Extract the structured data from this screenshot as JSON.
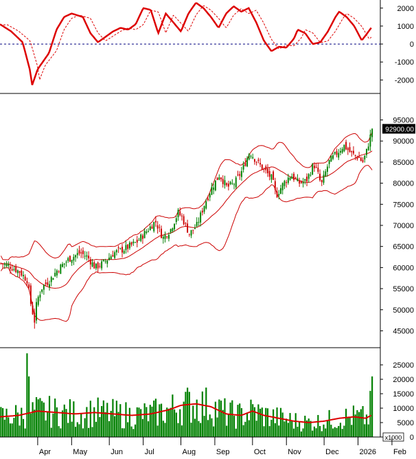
{
  "chart_data": {
    "type": "candlestick",
    "months": [
      {
        "label": "Apr",
        "t": 0.1
      },
      {
        "label": "May",
        "t": 0.19
      },
      {
        "label": "Jun",
        "t": 0.29
      },
      {
        "label": "Jul",
        "t": 0.38
      },
      {
        "label": "Aug",
        "t": 0.48
      },
      {
        "label": "Sep",
        "t": 0.57
      },
      {
        "label": "Oct",
        "t": 0.67
      },
      {
        "label": "Nov",
        "t": 0.76
      },
      {
        "label": "Dec",
        "t": 0.86
      },
      {
        "label": "2026",
        "t": 0.95
      },
      {
        "label": "Feb",
        "t": 1.04
      }
    ],
    "price_panel": {
      "ylim": [
        41000,
        99000
      ],
      "yticks": [
        45000,
        50000,
        55000,
        60000,
        65000,
        70000,
        75000,
        80000,
        85000,
        90000,
        95000
      ],
      "last_price_label": "92900.00",
      "last_price": 92900,
      "up_color": "#008000",
      "down_color": "#cc0000",
      "band_color": "#cc0000",
      "anchors": [
        [
          0.0,
          61000
        ],
        [
          0.02,
          60500
        ],
        [
          0.05,
          59000
        ],
        [
          0.07,
          57000
        ],
        [
          0.08,
          51000
        ],
        [
          0.09,
          47000
        ],
        [
          0.095,
          52000
        ],
        [
          0.11,
          55500
        ],
        [
          0.13,
          57000
        ],
        [
          0.15,
          59500
        ],
        [
          0.18,
          62000
        ],
        [
          0.21,
          63500
        ],
        [
          0.23,
          62500
        ],
        [
          0.25,
          60000
        ],
        [
          0.27,
          61000
        ],
        [
          0.3,
          63500
        ],
        [
          0.33,
          64500
        ],
        [
          0.36,
          66000
        ],
        [
          0.39,
          69000
        ],
        [
          0.41,
          71000
        ],
        [
          0.43,
          67000
        ],
        [
          0.45,
          69000
        ],
        [
          0.47,
          73000
        ],
        [
          0.48,
          72000
        ],
        [
          0.5,
          68000
        ],
        [
          0.52,
          70000
        ],
        [
          0.54,
          75000
        ],
        [
          0.56,
          79000
        ],
        [
          0.58,
          82000
        ],
        [
          0.6,
          79000
        ],
        [
          0.62,
          80000
        ],
        [
          0.64,
          83000
        ],
        [
          0.66,
          87500
        ],
        [
          0.68,
          85000
        ],
        [
          0.7,
          83000
        ],
        [
          0.72,
          81000
        ],
        [
          0.73,
          77000
        ],
        [
          0.75,
          80000
        ],
        [
          0.77,
          82000
        ],
        [
          0.79,
          80000
        ],
        [
          0.81,
          80500
        ],
        [
          0.83,
          84500
        ],
        [
          0.84,
          82500
        ],
        [
          0.85,
          79500
        ],
        [
          0.87,
          85000
        ],
        [
          0.89,
          87000
        ],
        [
          0.91,
          89000
        ],
        [
          0.93,
          87000
        ],
        [
          0.95,
          86000
        ],
        [
          0.96,
          85000
        ],
        [
          0.97,
          87500
        ],
        [
          0.985,
          92900
        ]
      ]
    },
    "oscillator_panel": {
      "ylim": [
        -2750,
        2450
      ],
      "yticks": [
        -2000,
        -1000,
        0,
        1000,
        2000
      ],
      "zero_line": 0,
      "line_color": "#dd0000",
      "anchors": [
        [
          0.0,
          1100
        ],
        [
          0.03,
          700
        ],
        [
          0.06,
          100
        ],
        [
          0.08,
          -1500
        ],
        [
          0.085,
          -2300
        ],
        [
          0.1,
          -1400
        ],
        [
          0.13,
          -500
        ],
        [
          0.15,
          800
        ],
        [
          0.17,
          1500
        ],
        [
          0.19,
          1700
        ],
        [
          0.22,
          1500
        ],
        [
          0.24,
          600
        ],
        [
          0.26,
          100
        ],
        [
          0.28,
          400
        ],
        [
          0.3,
          700
        ],
        [
          0.32,
          900
        ],
        [
          0.34,
          800
        ],
        [
          0.36,
          1100
        ],
        [
          0.38,
          2000
        ],
        [
          0.4,
          1900
        ],
        [
          0.42,
          600
        ],
        [
          0.44,
          1700
        ],
        [
          0.46,
          1200
        ],
        [
          0.48,
          700
        ],
        [
          0.5,
          1700
        ],
        [
          0.52,
          2300
        ],
        [
          0.54,
          2000
        ],
        [
          0.56,
          1500
        ],
        [
          0.58,
          900
        ],
        [
          0.6,
          1700
        ],
        [
          0.62,
          2100
        ],
        [
          0.64,
          1800
        ],
        [
          0.66,
          2000
        ],
        [
          0.68,
          1200
        ],
        [
          0.7,
          200
        ],
        [
          0.72,
          -400
        ],
        [
          0.74,
          -150
        ],
        [
          0.76,
          -200
        ],
        [
          0.78,
          300
        ],
        [
          0.79,
          800
        ],
        [
          0.81,
          600
        ],
        [
          0.83,
          0
        ],
        [
          0.85,
          100
        ],
        [
          0.87,
          700
        ],
        [
          0.89,
          1500
        ],
        [
          0.9,
          1800
        ],
        [
          0.92,
          1500
        ],
        [
          0.94,
          1000
        ],
        [
          0.96,
          200
        ],
        [
          0.985,
          900
        ]
      ],
      "signal_lag": 0.02
    },
    "volume_panel": {
      "ylim": [
        0,
        30000
      ],
      "yticks": [
        0,
        5000,
        10000,
        15000,
        20000,
        25000
      ],
      "unit_label": "x1000",
      "bar_color": "#008000",
      "ma_color": "#dd0000",
      "spikes": [
        [
          0.07,
          29000
        ],
        [
          0.075,
          21000
        ],
        [
          0.985,
          21000
        ],
        [
          0.98,
          16000
        ]
      ],
      "ma_anchors": [
        [
          0.0,
          7000
        ],
        [
          0.05,
          7500
        ],
        [
          0.1,
          9000
        ],
        [
          0.15,
          8500
        ],
        [
          0.2,
          8000
        ],
        [
          0.25,
          8500
        ],
        [
          0.3,
          8000
        ],
        [
          0.35,
          7500
        ],
        [
          0.4,
          8000
        ],
        [
          0.45,
          9500
        ],
        [
          0.48,
          11000
        ],
        [
          0.52,
          11500
        ],
        [
          0.56,
          10500
        ],
        [
          0.6,
          8000
        ],
        [
          0.64,
          7500
        ],
        [
          0.67,
          9000
        ],
        [
          0.7,
          7500
        ],
        [
          0.74,
          6500
        ],
        [
          0.78,
          5500
        ],
        [
          0.82,
          5000
        ],
        [
          0.86,
          5500
        ],
        [
          0.9,
          6500
        ],
        [
          0.94,
          7000
        ],
        [
          0.97,
          6500
        ],
        [
          0.985,
          7500
        ]
      ]
    },
    "bars_count": 200,
    "bb_period": 20,
    "bb_mult": 2.0,
    "vol_ma_period": 20
  }
}
